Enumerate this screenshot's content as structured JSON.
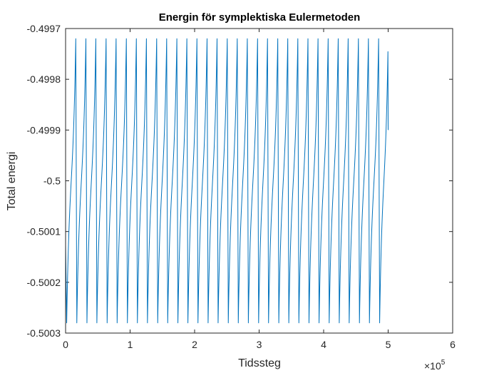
{
  "chart_data": {
    "type": "line",
    "title": "Energin för symplektiska Eulermetoden",
    "xlabel": "Tidssteg",
    "ylabel": "Total energi",
    "x_exponent_label": "×10",
    "x_exponent_power": "5",
    "xlim": [
      0,
      600000
    ],
    "ylim": [
      -0.5003,
      -0.4997
    ],
    "x_ticks": [
      0,
      100000,
      200000,
      300000,
      400000,
      500000,
      600000
    ],
    "x_tick_labels": [
      "0",
      "1",
      "2",
      "3",
      "4",
      "5",
      "6"
    ],
    "y_ticks": [
      -0.5003,
      -0.5002,
      -0.5001,
      -0.5,
      -0.4999,
      -0.4998,
      -0.4997
    ],
    "y_tick_labels": [
      "-0.5003",
      "-0.5002",
      "-0.5001",
      "-0.5",
      "-0.4999",
      "-0.4998",
      "-0.4997"
    ],
    "grid": false,
    "series": [
      {
        "color": "#0072BD",
        "x_start": 0,
        "x_end": 500000,
        "peak_value": -0.49972,
        "trough_value": -0.50028,
        "end_value": -0.4999,
        "peak_x": [
          15800,
          31500,
          46900,
          62800,
          78300,
          94200,
          109700,
          125300,
          141200,
          156700,
          172500,
          188000,
          203600,
          219300,
          234800,
          250600,
          266100,
          281700,
          297600,
          313000,
          328900,
          344400,
          360000,
          375700,
          391300,
          407000,
          422600,
          438000,
          453900,
          469400,
          485200
        ],
        "trough_x": [
          1700,
          17400,
          33100,
          48500,
          64400,
          79900,
          95800,
          111300,
          126900,
          142800,
          158300,
          174100,
          189600,
          205200,
          220900,
          236400,
          252200,
          267700,
          283300,
          299200,
          314600,
          330500,
          346000,
          361600,
          377300,
          392900,
          408600,
          424200,
          439600,
          455500,
          471000,
          486800
        ]
      }
    ]
  }
}
